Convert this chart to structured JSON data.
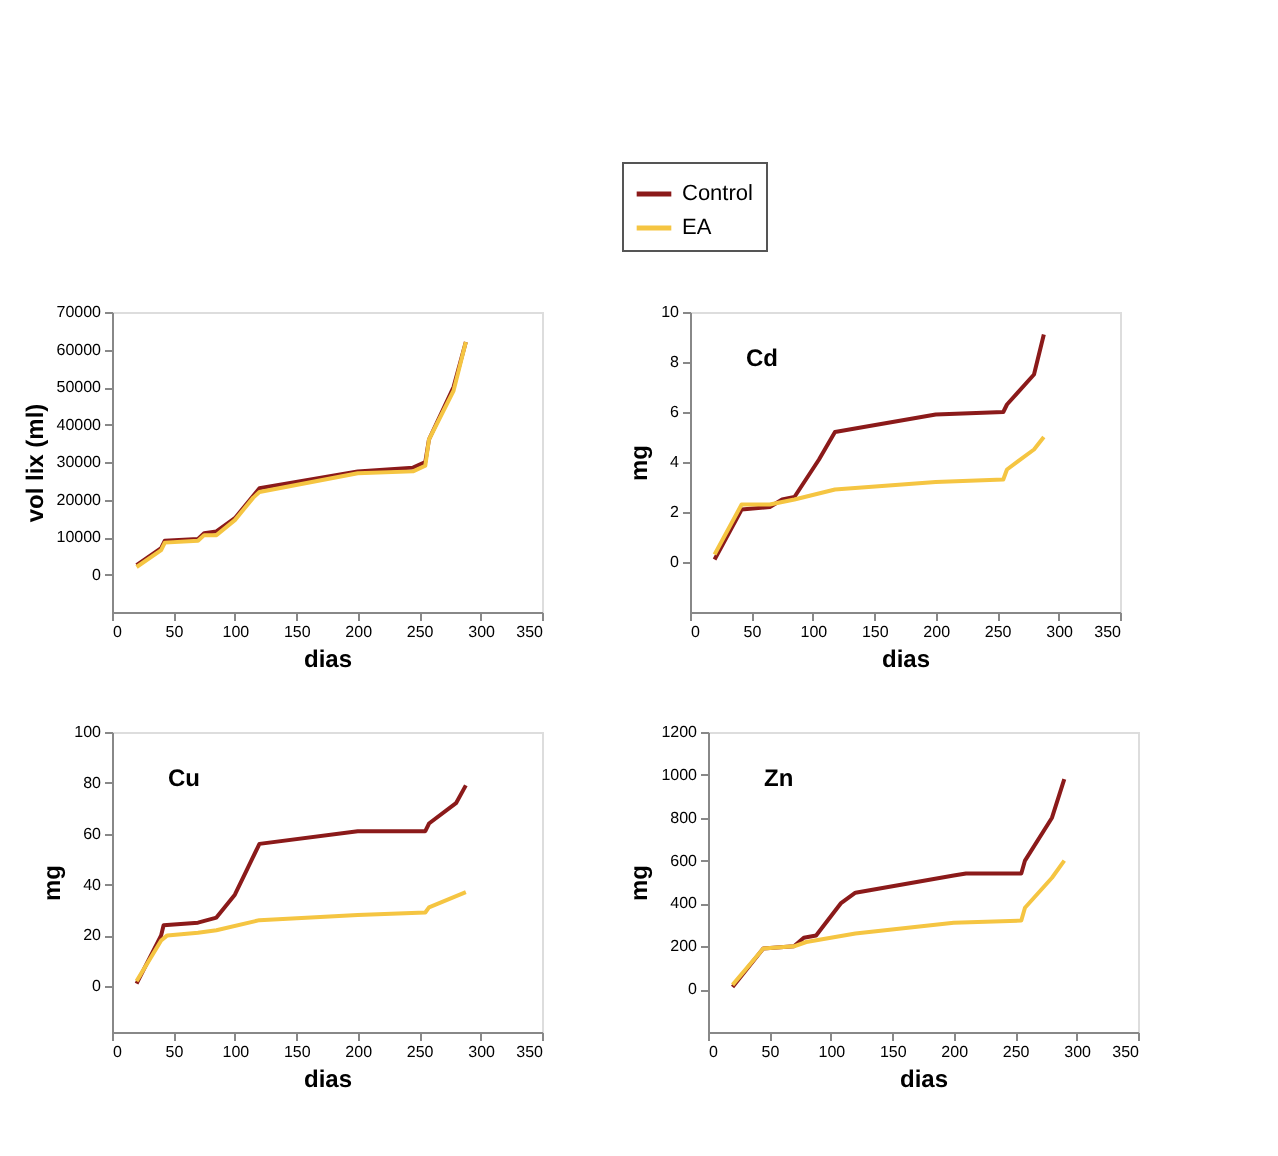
{
  "chart_data": [
    {
      "type": "line",
      "xlabel": "dias",
      "ylabel": "vol lix (ml)",
      "xlim": [
        0,
        350
      ],
      "xticks": [
        0,
        50,
        100,
        150,
        200,
        250,
        300,
        350
      ],
      "ylim": [
        -10000,
        70000
      ],
      "yticks": [
        0,
        10000,
        20000,
        30000,
        40000,
        50000,
        60000,
        70000
      ],
      "grid": false,
      "legend": "top",
      "marker": "none",
      "series": [
        {
          "name": "Control",
          "color": "#8b1a1a",
          "x": [
            20,
            40,
            43,
            70,
            75,
            85,
            100,
            115,
            120,
            200,
            245,
            255,
            258,
            278,
            288
          ],
          "values": [
            2500,
            7000,
            9000,
            9500,
            11000,
            11500,
            15000,
            21000,
            23000,
            27500,
            28500,
            30000,
            36000,
            50000,
            62000
          ]
        },
        {
          "name": "EA",
          "color": "#f5c542",
          "x": [
            20,
            40,
            43,
            70,
            75,
            85,
            100,
            115,
            120,
            200,
            245,
            255,
            258,
            278,
            288
          ],
          "values": [
            2000,
            6500,
            8500,
            9000,
            10500,
            10500,
            14500,
            20500,
            22000,
            27000,
            27500,
            29000,
            36000,
            49000,
            62000
          ]
        }
      ]
    },
    {
      "type": "line",
      "title": "Cd",
      "xlabel": "dias",
      "ylabel": "mg",
      "xlim": [
        0,
        350
      ],
      "xticks": [
        0,
        50,
        100,
        150,
        200,
        250,
        300,
        350
      ],
      "ylim": [
        -2,
        10
      ],
      "yticks": [
        0,
        2,
        4,
        6,
        8,
        10
      ],
      "grid": false,
      "legend": false,
      "marker": "none",
      "series": [
        {
          "name": "Control",
          "color": "#8b1a1a",
          "x": [
            20,
            42,
            65,
            75,
            85,
            105,
            118,
            200,
            255,
            258,
            280,
            288
          ],
          "values": [
            0.1,
            2.1,
            2.2,
            2.5,
            2.6,
            4.1,
            5.2,
            5.9,
            6.0,
            6.3,
            7.5,
            9.1
          ]
        },
        {
          "name": "EA",
          "color": "#f5c542",
          "x": [
            20,
            42,
            65,
            75,
            85,
            118,
            200,
            255,
            258,
            280,
            288
          ],
          "values": [
            0.3,
            2.3,
            2.3,
            2.4,
            2.5,
            2.9,
            3.2,
            3.3,
            3.7,
            4.5,
            5.0
          ]
        }
      ]
    },
    {
      "type": "line",
      "title": "Cu",
      "xlabel": "dias",
      "ylabel": "mg",
      "xlim": [
        0,
        350
      ],
      "xticks": [
        0,
        50,
        100,
        150,
        200,
        250,
        300,
        350
      ],
      "ylim": [
        -18,
        100
      ],
      "yticks": [
        0,
        20,
        40,
        60,
        80,
        100
      ],
      "grid": false,
      "legend": false,
      "marker": "none",
      "series": [
        {
          "name": "Control",
          "color": "#8b1a1a",
          "x": [
            20,
            40,
            42,
            70,
            85,
            100,
            108,
            120,
            200,
            255,
            258,
            280,
            288
          ],
          "values": [
            1,
            20,
            24,
            25,
            27,
            36,
            44,
            56,
            61,
            61,
            64,
            72,
            79
          ]
        },
        {
          "name": "EA",
          "color": "#f5c542",
          "x": [
            20,
            40,
            45,
            70,
            85,
            120,
            200,
            255,
            258,
            288
          ],
          "values": [
            2,
            18,
            20,
            21,
            22,
            26,
            28,
            29,
            31,
            37
          ]
        }
      ]
    },
    {
      "type": "line",
      "title": "Zn",
      "xlabel": "dias",
      "ylabel": "mg",
      "xlim": [
        0,
        350
      ],
      "xticks": [
        0,
        50,
        100,
        150,
        200,
        250,
        300,
        350
      ],
      "ylim": [
        -200,
        1200
      ],
      "yticks": [
        0,
        200,
        400,
        600,
        800,
        1000,
        1200
      ],
      "grid": false,
      "legend": false,
      "marker": "none",
      "series": [
        {
          "name": "Control",
          "color": "#8b1a1a",
          "x": [
            20,
            45,
            70,
            78,
            88,
            108,
            120,
            200,
            210,
            255,
            258,
            280,
            290
          ],
          "values": [
            10,
            190,
            200,
            240,
            250,
            400,
            450,
            530,
            540,
            540,
            600,
            800,
            980
          ]
        },
        {
          "name": "EA",
          "color": "#f5c542",
          "x": [
            20,
            45,
            70,
            80,
            120,
            200,
            255,
            258,
            280,
            290
          ],
          "values": [
            20,
            190,
            200,
            220,
            260,
            310,
            320,
            380,
            520,
            600
          ]
        }
      ]
    }
  ]
}
